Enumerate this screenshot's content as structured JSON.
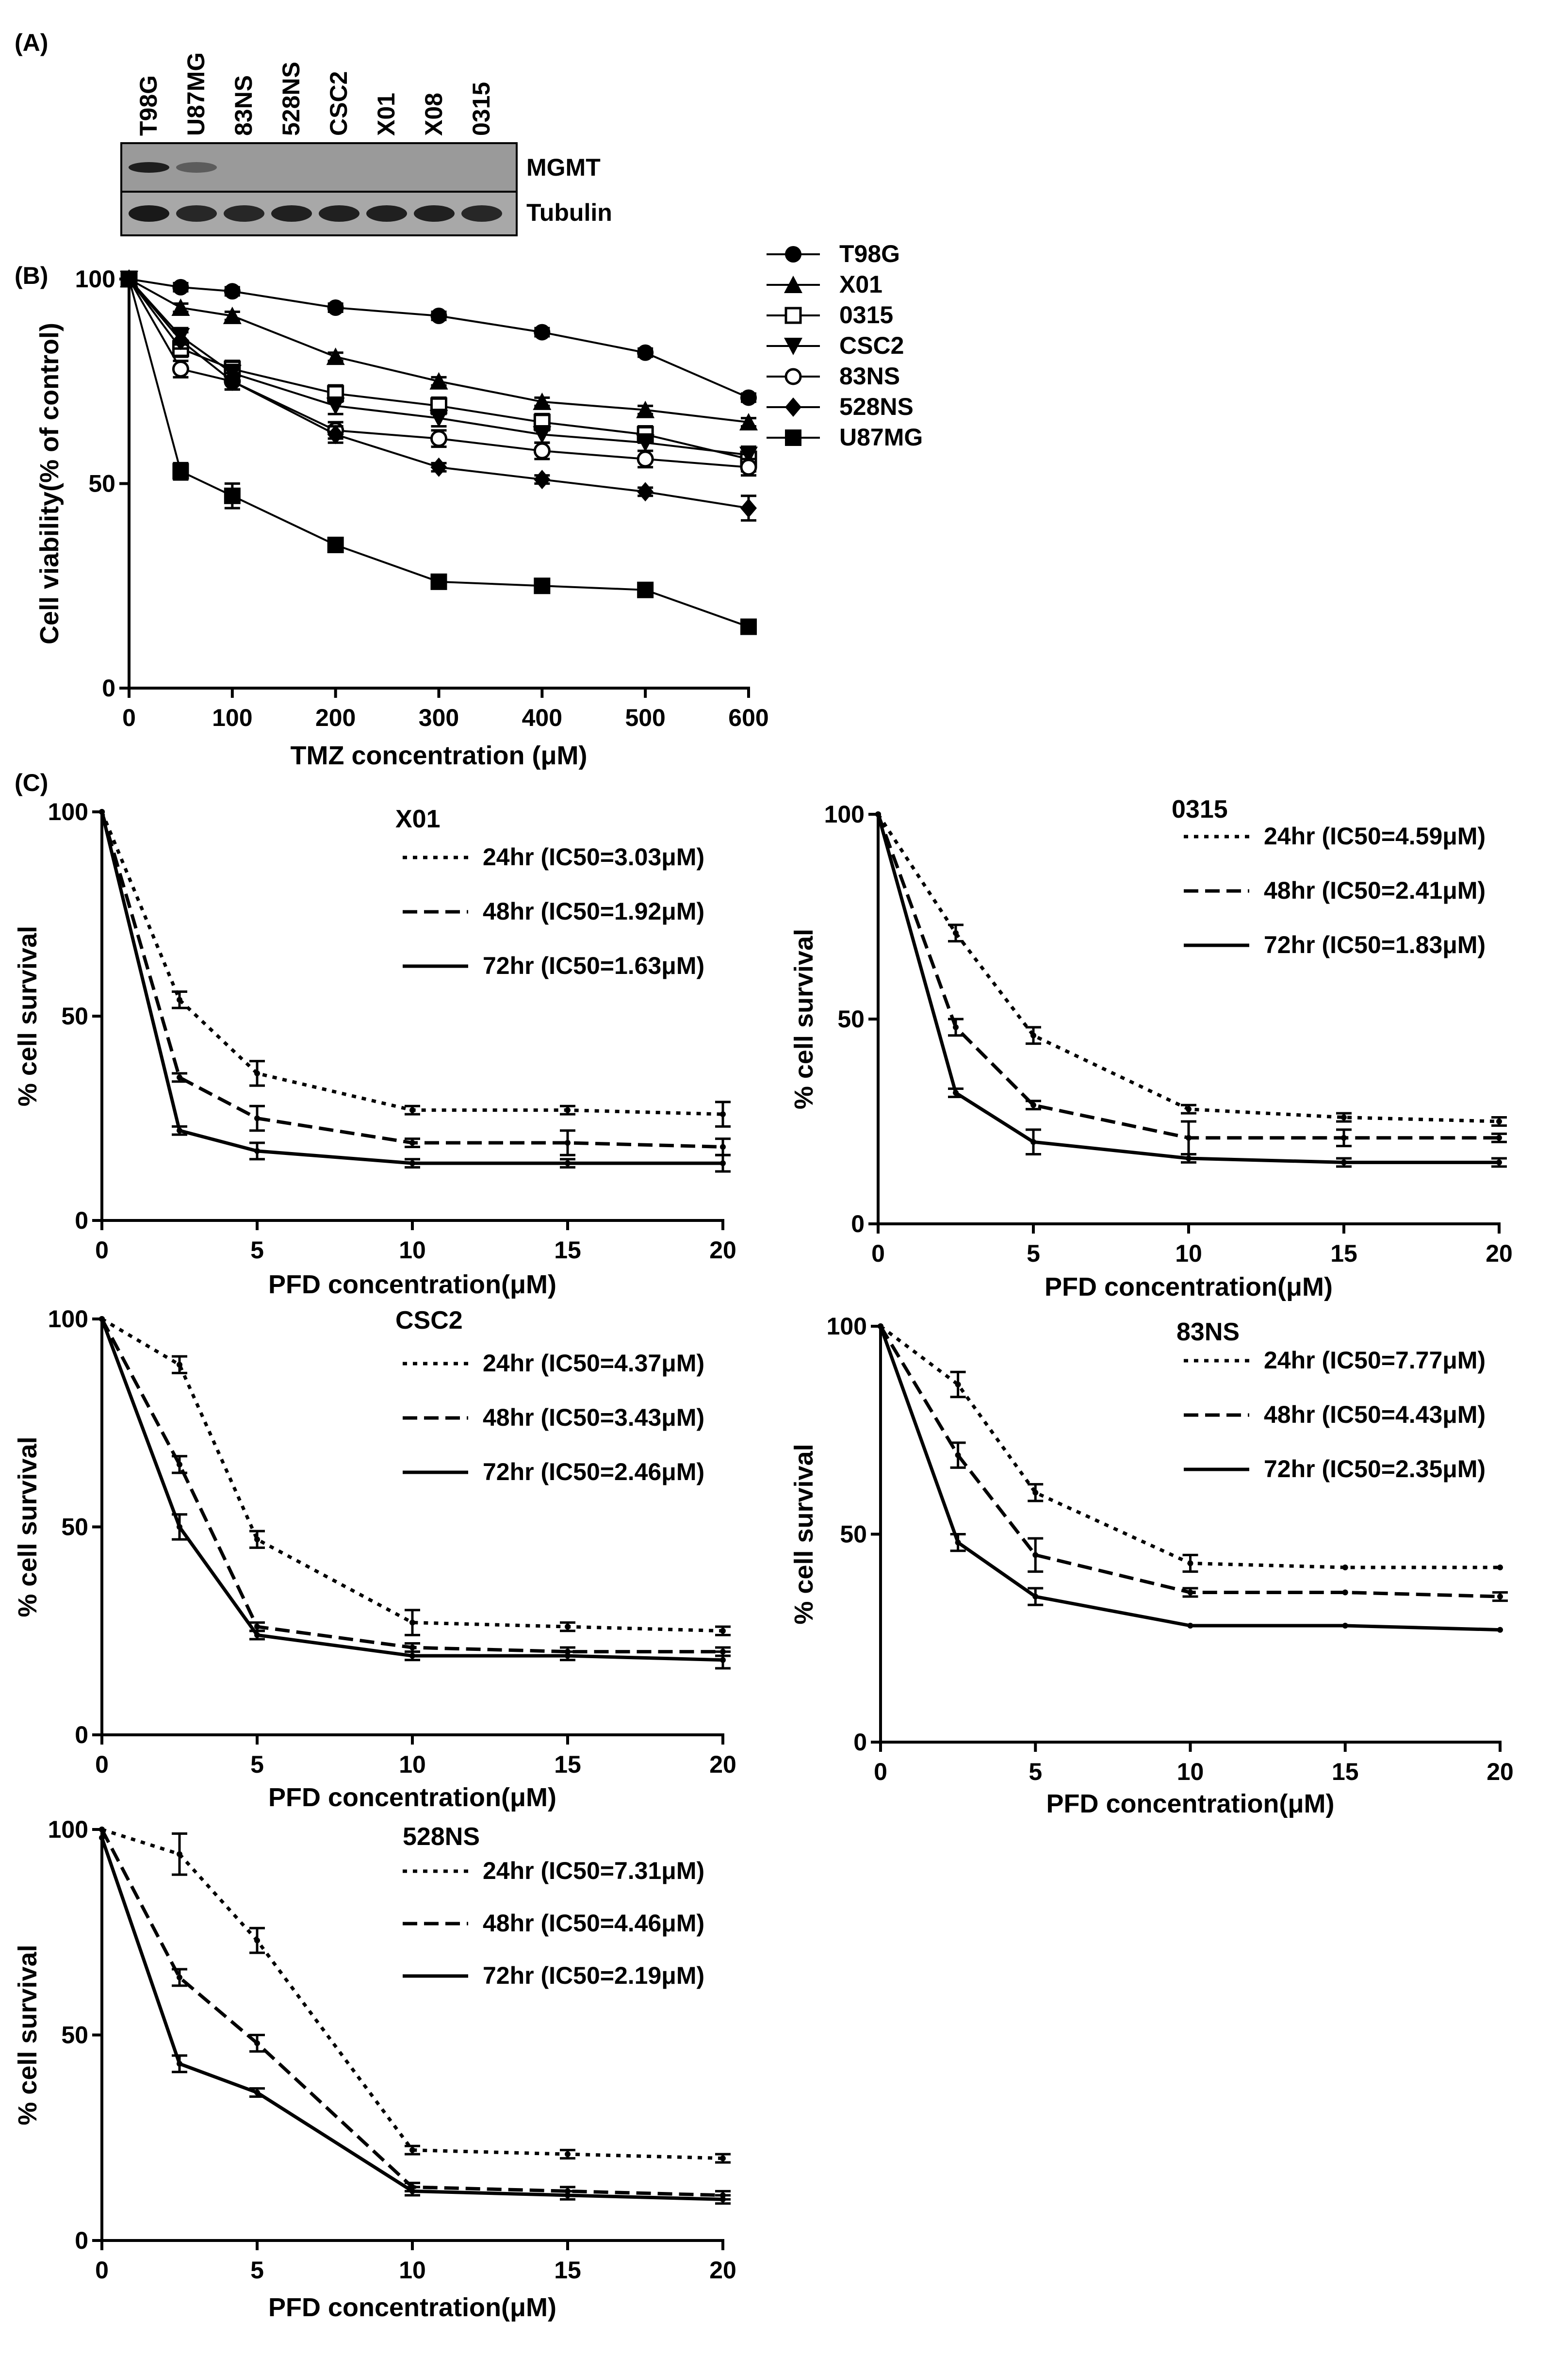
{
  "panel_labels": [
    "(A)",
    "(B)",
    "(C)"
  ],
  "blot": {
    "lanes": [
      "T98G",
      "U87MG",
      "83NS",
      "528NS",
      "CSC2",
      "X01",
      "X08",
      "0315"
    ],
    "rows": [
      {
        "label": "MGMT",
        "lane_intensity": [
          0.9,
          0.45,
          0,
          0,
          0,
          0,
          0,
          0
        ]
      },
      {
        "label": "Tubulin",
        "lane_intensity": [
          0.95,
          0.85,
          0.85,
          0.9,
          0.9,
          0.9,
          0.9,
          0.85
        ]
      }
    ]
  },
  "chart_data": [
    {
      "id": "B",
      "type": "line",
      "title": "",
      "xlabel": "TMZ concentration (μM)",
      "ylabel": "Cell viability(% of control)",
      "x": [
        0,
        50,
        100,
        200,
        300,
        400,
        500,
        600
      ],
      "xticks": [
        0,
        100,
        200,
        300,
        400,
        500,
        600
      ],
      "yticks": [
        0,
        50,
        100
      ],
      "xlim": [
        0,
        600
      ],
      "ylim": [
        0,
        100
      ],
      "legend_position": "top-right",
      "series": [
        {
          "name": "T98G",
          "marker": "circle-filled",
          "values": [
            100,
            98,
            97,
            93,
            91,
            87,
            82,
            71
          ],
          "err": [
            0,
            1,
            1,
            1,
            1,
            1,
            1,
            1
          ]
        },
        {
          "name": "X01",
          "marker": "triangle-up",
          "values": [
            100,
            93,
            91,
            81,
            75,
            70,
            68,
            65
          ],
          "err": [
            0,
            1,
            1,
            1,
            1,
            1,
            1,
            1
          ]
        },
        {
          "name": "0315",
          "marker": "square-open",
          "values": [
            100,
            83,
            78,
            72,
            69,
            65,
            62,
            56
          ],
          "err": [
            0,
            2,
            2,
            2,
            2,
            2,
            2,
            3
          ]
        },
        {
          "name": "CSC2",
          "marker": "triangle-down",
          "values": [
            100,
            86,
            77,
            69,
            66,
            62,
            60,
            57
          ],
          "err": [
            0,
            2,
            2,
            2,
            2,
            2,
            2,
            2
          ]
        },
        {
          "name": "83NS",
          "marker": "circle-open",
          "values": [
            100,
            78,
            75,
            63,
            61,
            58,
            56,
            54
          ],
          "err": [
            0,
            2,
            2,
            2,
            2,
            2,
            2,
            2
          ]
        },
        {
          "name": "528NS",
          "marker": "diamond",
          "values": [
            100,
            85,
            75,
            62,
            54,
            51,
            48,
            44
          ],
          "err": [
            0,
            2,
            2,
            2,
            1,
            1,
            1,
            3
          ]
        },
        {
          "name": "U87MG",
          "marker": "square-filled",
          "values": [
            100,
            53,
            47,
            35,
            26,
            25,
            24,
            15
          ],
          "err": [
            0,
            2,
            3,
            1,
            1,
            1,
            1,
            1
          ]
        }
      ]
    },
    {
      "id": "C-X01",
      "type": "line",
      "title": "X01",
      "xlabel": "PFD concentration(μM)",
      "ylabel": "% cell survival",
      "x": [
        0,
        2.5,
        5,
        10,
        15,
        20
      ],
      "xticks": [
        0,
        5,
        10,
        15,
        20
      ],
      "yticks": [
        0,
        50,
        100
      ],
      "xlim": [
        0,
        20
      ],
      "ylim": [
        0,
        100
      ],
      "legend_position": "top-right",
      "series": [
        {
          "name": "24hr (IC50=3.03μM)",
          "style": "dotted",
          "values": [
            100,
            54,
            36,
            27,
            27,
            26
          ],
          "err": [
            0,
            2,
            3,
            1,
            1,
            3
          ]
        },
        {
          "name": "48hr (IC50=1.92μM)",
          "style": "dashed",
          "values": [
            100,
            35,
            25,
            19,
            19,
            18
          ],
          "err": [
            0,
            1,
            3,
            1,
            3,
            2
          ]
        },
        {
          "name": "72hr (IC50=1.63μM)",
          "style": "solid",
          "values": [
            100,
            22,
            17,
            14,
            14,
            14
          ],
          "err": [
            0,
            1,
            2,
            1,
            1,
            2
          ]
        }
      ]
    },
    {
      "id": "C-0315",
      "type": "line",
      "title": "0315",
      "xlabel": "PFD concentration(μM)",
      "ylabel": "% cell survival",
      "x": [
        0,
        2.5,
        5,
        10,
        15,
        20
      ],
      "xticks": [
        0,
        5,
        10,
        15,
        20
      ],
      "yticks": [
        0,
        50,
        100
      ],
      "xlim": [
        0,
        20
      ],
      "ylim": [
        0,
        100
      ],
      "legend_position": "top-right",
      "series": [
        {
          "name": "24hr (IC50=4.59μM)",
          "style": "dotted",
          "values": [
            100,
            71,
            46,
            28,
            26,
            25
          ],
          "err": [
            0,
            2,
            2,
            1,
            1,
            1
          ]
        },
        {
          "name": "48hr (IC50=2.41μM)",
          "style": "dashed",
          "values": [
            100,
            48,
            29,
            21,
            21,
            21
          ],
          "err": [
            0,
            2,
            1,
            4,
            2,
            1
          ]
        },
        {
          "name": "72hr (IC50=1.83μM)",
          "style": "solid",
          "values": [
            100,
            32,
            20,
            16,
            15,
            15
          ],
          "err": [
            0,
            1,
            3,
            1,
            1,
            1
          ]
        }
      ]
    },
    {
      "id": "C-CSC2",
      "type": "line",
      "title": "CSC2",
      "xlabel": "PFD concentration(μM)",
      "ylabel": "% cell survival",
      "x": [
        0,
        2.5,
        5,
        10,
        15,
        20
      ],
      "xticks": [
        0,
        5,
        10,
        15,
        20
      ],
      "yticks": [
        0,
        50,
        100
      ],
      "xlim": [
        0,
        20
      ],
      "ylim": [
        0,
        100
      ],
      "legend_position": "top-right",
      "series": [
        {
          "name": "24hr (IC50=4.37μM)",
          "style": "dotted",
          "values": [
            100,
            89,
            47,
            27,
            26,
            25
          ],
          "err": [
            0,
            2,
            2,
            3,
            1,
            1
          ]
        },
        {
          "name": "48hr (IC50=3.43μM)",
          "style": "dashed",
          "values": [
            100,
            65,
            26,
            21,
            20,
            20
          ],
          "err": [
            0,
            2,
            1,
            1,
            1,
            1
          ]
        },
        {
          "name": "72hr (IC50=2.46μM)",
          "style": "solid",
          "values": [
            100,
            50,
            24,
            19,
            19,
            18
          ],
          "err": [
            0,
            3,
            1,
            1,
            1,
            2
          ]
        }
      ]
    },
    {
      "id": "C-83NS",
      "type": "line",
      "title": "83NS",
      "xlabel": "PFD concentration(μM)",
      "ylabel": "% cell survival",
      "x": [
        0,
        2.5,
        5,
        10,
        15,
        20
      ],
      "xticks": [
        0,
        5,
        10,
        15,
        20
      ],
      "yticks": [
        0,
        50,
        100
      ],
      "xlim": [
        0,
        20
      ],
      "ylim": [
        0,
        100
      ],
      "legend_position": "top-right",
      "series": [
        {
          "name": "24hr (IC50=7.77μM)",
          "style": "dotted",
          "values": [
            100,
            86,
            60,
            43,
            42,
            42
          ],
          "err": [
            0,
            3,
            2,
            2,
            0,
            0
          ]
        },
        {
          "name": "48hr (IC50=4.43μM)",
          "style": "dashed",
          "values": [
            100,
            69,
            45,
            36,
            36,
            35
          ],
          "err": [
            0,
            3,
            4,
            1,
            0,
            1
          ]
        },
        {
          "name": "72hr (IC50=2.35μM)",
          "style": "solid",
          "values": [
            100,
            48,
            35,
            28,
            28,
            27
          ],
          "err": [
            0,
            2,
            2,
            0,
            0,
            0
          ]
        }
      ]
    },
    {
      "id": "C-528NS",
      "type": "line",
      "title": "528NS",
      "xlabel": "PFD concentration(μM)",
      "ylabel": "% cell survival",
      "x": [
        0,
        2.5,
        5,
        10,
        15,
        20
      ],
      "xticks": [
        0,
        5,
        10,
        15,
        20
      ],
      "yticks": [
        0,
        50,
        100
      ],
      "xlim": [
        0,
        20
      ],
      "ylim": [
        0,
        100
      ],
      "legend_position": "top-right",
      "series": [
        {
          "name": "24hr (IC50=7.31μM)",
          "style": "dotted",
          "values": [
            100,
            94,
            73,
            22,
            21,
            20
          ],
          "err": [
            0,
            5,
            3,
            1,
            1,
            1
          ]
        },
        {
          "name": "48hr (IC50=4.46μM)",
          "style": "dashed",
          "values": [
            100,
            64,
            48,
            13,
            12,
            11
          ],
          "err": [
            0,
            2,
            2,
            1,
            1,
            1
          ]
        },
        {
          "name": "72hr (IC50=2.19μM)",
          "style": "solid",
          "values": [
            98,
            43,
            36,
            12,
            11,
            10
          ],
          "err": [
            0,
            2,
            1,
            1,
            1,
            1
          ]
        }
      ]
    }
  ]
}
